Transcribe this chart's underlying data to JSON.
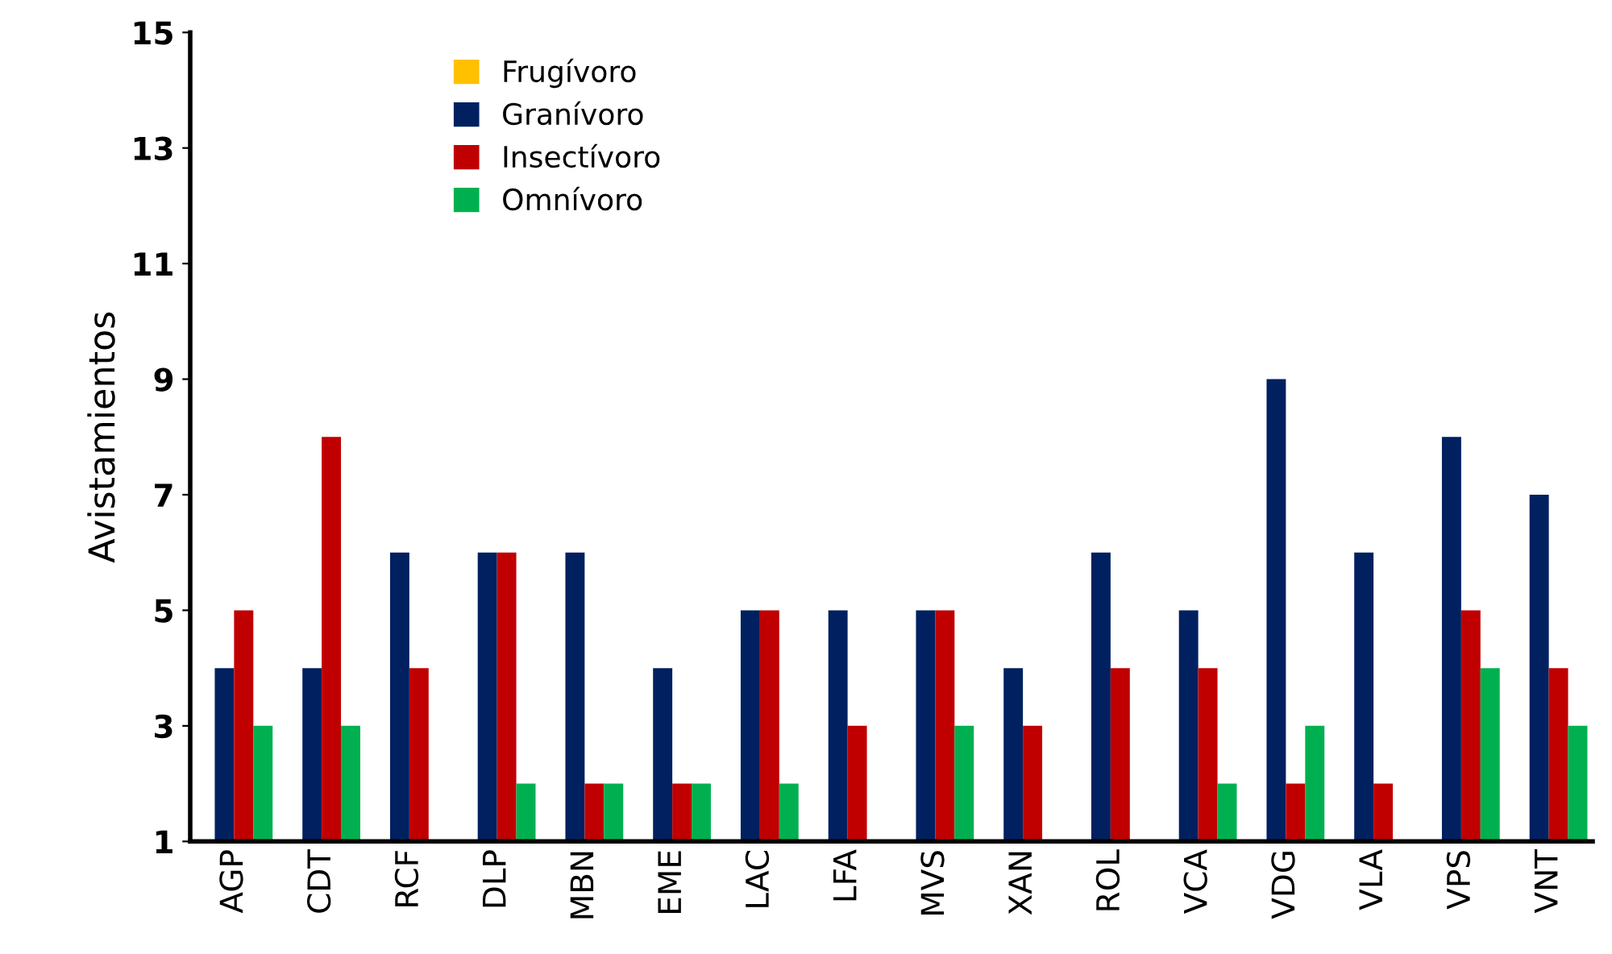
{
  "chart_data": {
    "type": "bar",
    "ylabel": "Avistamientos",
    "categories": [
      "AGP",
      "CDT",
      "RCF",
      "DLP",
      "MBN",
      "EME",
      "LAC",
      "LFA",
      "MVS",
      "XAN",
      "ROL",
      "VCA",
      "VDG",
      "VLA",
      "VPS",
      "VNT"
    ],
    "series": [
      {
        "name": "Frugívoro",
        "color": "#ffc000",
        "values": [
          1,
          1,
          1,
          1,
          1,
          1,
          1,
          1,
          1,
          1,
          1,
          1,
          1,
          1,
          1,
          1
        ]
      },
      {
        "name": "Granívoro",
        "color": "#002060",
        "values": [
          4,
          4,
          6,
          6,
          6,
          4,
          5,
          5,
          5,
          4,
          6,
          5,
          9,
          6,
          8,
          7
        ]
      },
      {
        "name": "Insectívoro",
        "color": "#c00000",
        "values": [
          5,
          8,
          4,
          6,
          2,
          2,
          5,
          3,
          5,
          3,
          4,
          4,
          2,
          2,
          5,
          4
        ]
      },
      {
        "name": "Omnívoro",
        "color": "#00b050",
        "values": [
          3,
          3,
          null,
          2,
          2,
          2,
          2,
          null,
          3,
          1,
          1,
          2,
          3,
          null,
          4,
          3
        ]
      }
    ],
    "ylim": [
      1,
      15
    ],
    "yticks": [
      1,
      3,
      5,
      7,
      9,
      11,
      13,
      15
    ],
    "grid": false,
    "legend": "top left"
  }
}
